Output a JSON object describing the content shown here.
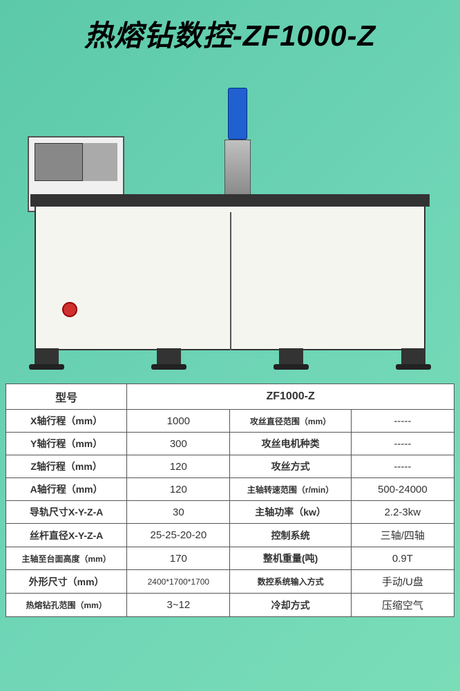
{
  "title": "热熔钻数控-ZF1000-Z",
  "background_gradient": [
    "#5cc9a8",
    "#6dd4b5",
    "#7addb8"
  ],
  "table": {
    "border_color": "#555555",
    "background_color": "#ffffff",
    "text_color": "#333333",
    "header": {
      "label": "型号",
      "value": "ZF1000-Z"
    },
    "rows": [
      {
        "l1": "X轴行程（mm）",
        "v1": "1000",
        "l2": "攻丝直径范围（mm）",
        "v2": "-----",
        "l2_small": true
      },
      {
        "l1": "Y轴行程（mm）",
        "v1": "300",
        "l2": "攻丝电机种类",
        "v2": "-----"
      },
      {
        "l1": "Z轴行程（mm）",
        "v1": "120",
        "l2": "攻丝方式",
        "v2": "-----"
      },
      {
        "l1": "A轴行程（mm）",
        "v1": "120",
        "l2": "主轴转速范围（r/min）",
        "v2": "500-24000",
        "l2_small": true
      },
      {
        "l1": "导轨尺寸X-Y-Z-A",
        "v1": "30",
        "l2": "主轴功率（kw）",
        "v2": "2.2-3kw"
      },
      {
        "l1": "丝杆直径X-Y-Z-A",
        "v1": "25-25-20-20",
        "l2": "控制系统",
        "v2": "三轴/四轴"
      },
      {
        "l1": "主轴至台面高度（mm）",
        "v1": "170",
        "l2": "整机重量(吨)",
        "v2": "0.9T",
        "l1_small": true
      },
      {
        "l1": "外形尺寸（mm）",
        "v1": "2400*1700*1700",
        "l2": "数控系统输入方式",
        "v2": "手动/U盘",
        "v1_small": true,
        "l2_small": true
      },
      {
        "l1": "热熔钻孔范围（mm）",
        "v1": "3~12",
        "l2": "冷却方式",
        "v2": "压缩空气",
        "l1_small": true
      }
    ]
  }
}
